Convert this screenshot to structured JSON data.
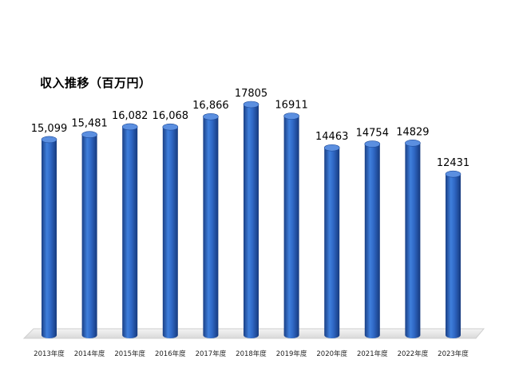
{
  "chart_data": {
    "type": "bar",
    "title": "収入推移（百万円）",
    "xlabel": "",
    "ylabel": "",
    "grid": false,
    "legend": "none",
    "ylim": [
      0,
      17805
    ],
    "categories": [
      "2013年度",
      "2014年度",
      "2015年度",
      "2016年度",
      "2017年度",
      "2018年度",
      "2019年度",
      "2020年度",
      "2021年度",
      "2022年度",
      "2023年度"
    ],
    "values": [
      15099,
      15481,
      16082,
      16068,
      16866,
      17805,
      16911,
      14463,
      14754,
      14829,
      12431
    ],
    "data_labels": [
      "15,099",
      "15,481",
      "16,082",
      "16,068",
      "16,866",
      "17805",
      "16911",
      "14463",
      "14754",
      "14829",
      "12431"
    ],
    "bar_color": "#2e64be"
  }
}
